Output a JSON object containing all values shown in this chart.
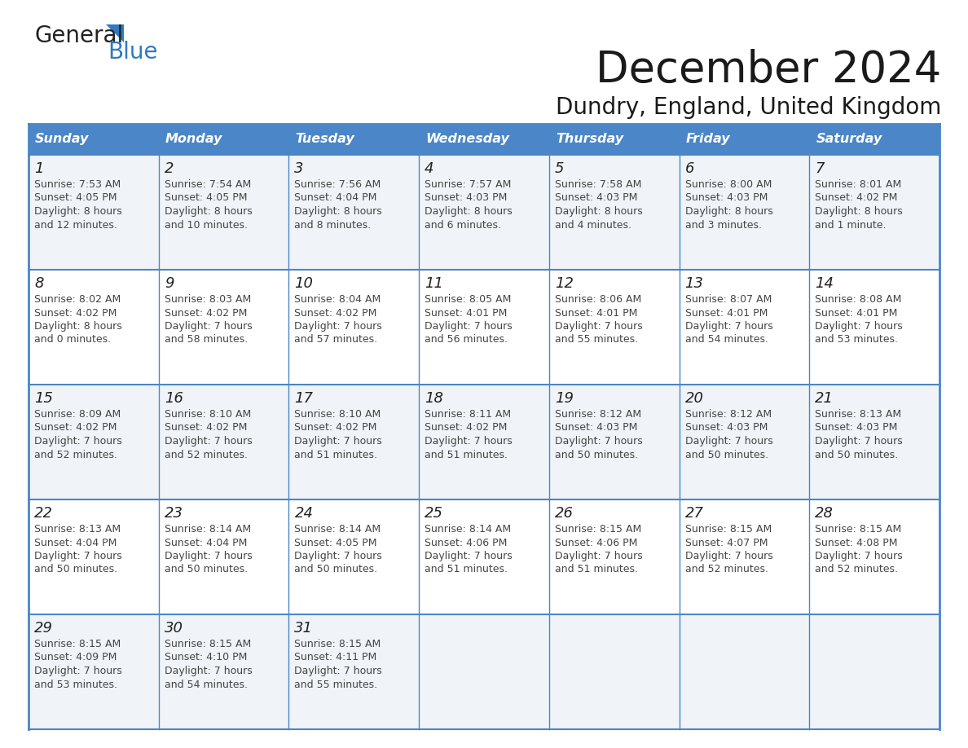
{
  "title": "December 2024",
  "subtitle": "Dundry, England, United Kingdom",
  "header_color": "#4a86c8",
  "header_text_color": "#ffffff",
  "day_names": [
    "Sunday",
    "Monday",
    "Tuesday",
    "Wednesday",
    "Thursday",
    "Friday",
    "Saturday"
  ],
  "cell_bg_even": "#f0f4f8",
  "cell_bg_odd": "#ffffff",
  "border_color": "#4a86c8",
  "day_num_color": "#222222",
  "cell_text_color": "#444444",
  "logo_general_color": "#222222",
  "logo_blue_color": "#2e7bbf",
  "title_color": "#1a1a1a",
  "subtitle_color": "#1a1a1a",
  "weeks": [
    [
      {
        "day": 1,
        "sunrise": "7:53 AM",
        "sunset": "4:05 PM",
        "daylight_line1": "Daylight: 8 hours",
        "daylight_line2": "and 12 minutes."
      },
      {
        "day": 2,
        "sunrise": "7:54 AM",
        "sunset": "4:05 PM",
        "daylight_line1": "Daylight: 8 hours",
        "daylight_line2": "and 10 minutes."
      },
      {
        "day": 3,
        "sunrise": "7:56 AM",
        "sunset": "4:04 PM",
        "daylight_line1": "Daylight: 8 hours",
        "daylight_line2": "and 8 minutes."
      },
      {
        "day": 4,
        "sunrise": "7:57 AM",
        "sunset": "4:03 PM",
        "daylight_line1": "Daylight: 8 hours",
        "daylight_line2": "and 6 minutes."
      },
      {
        "day": 5,
        "sunrise": "7:58 AM",
        "sunset": "4:03 PM",
        "daylight_line1": "Daylight: 8 hours",
        "daylight_line2": "and 4 minutes."
      },
      {
        "day": 6,
        "sunrise": "8:00 AM",
        "sunset": "4:03 PM",
        "daylight_line1": "Daylight: 8 hours",
        "daylight_line2": "and 3 minutes."
      },
      {
        "day": 7,
        "sunrise": "8:01 AM",
        "sunset": "4:02 PM",
        "daylight_line1": "Daylight: 8 hours",
        "daylight_line2": "and 1 minute."
      }
    ],
    [
      {
        "day": 8,
        "sunrise": "8:02 AM",
        "sunset": "4:02 PM",
        "daylight_line1": "Daylight: 8 hours",
        "daylight_line2": "and 0 minutes."
      },
      {
        "day": 9,
        "sunrise": "8:03 AM",
        "sunset": "4:02 PM",
        "daylight_line1": "Daylight: 7 hours",
        "daylight_line2": "and 58 minutes."
      },
      {
        "day": 10,
        "sunrise": "8:04 AM",
        "sunset": "4:02 PM",
        "daylight_line1": "Daylight: 7 hours",
        "daylight_line2": "and 57 minutes."
      },
      {
        "day": 11,
        "sunrise": "8:05 AM",
        "sunset": "4:01 PM",
        "daylight_line1": "Daylight: 7 hours",
        "daylight_line2": "and 56 minutes."
      },
      {
        "day": 12,
        "sunrise": "8:06 AM",
        "sunset": "4:01 PM",
        "daylight_line1": "Daylight: 7 hours",
        "daylight_line2": "and 55 minutes."
      },
      {
        "day": 13,
        "sunrise": "8:07 AM",
        "sunset": "4:01 PM",
        "daylight_line1": "Daylight: 7 hours",
        "daylight_line2": "and 54 minutes."
      },
      {
        "day": 14,
        "sunrise": "8:08 AM",
        "sunset": "4:01 PM",
        "daylight_line1": "Daylight: 7 hours",
        "daylight_line2": "and 53 minutes."
      }
    ],
    [
      {
        "day": 15,
        "sunrise": "8:09 AM",
        "sunset": "4:02 PM",
        "daylight_line1": "Daylight: 7 hours",
        "daylight_line2": "and 52 minutes."
      },
      {
        "day": 16,
        "sunrise": "8:10 AM",
        "sunset": "4:02 PM",
        "daylight_line1": "Daylight: 7 hours",
        "daylight_line2": "and 52 minutes."
      },
      {
        "day": 17,
        "sunrise": "8:10 AM",
        "sunset": "4:02 PM",
        "daylight_line1": "Daylight: 7 hours",
        "daylight_line2": "and 51 minutes."
      },
      {
        "day": 18,
        "sunrise": "8:11 AM",
        "sunset": "4:02 PM",
        "daylight_line1": "Daylight: 7 hours",
        "daylight_line2": "and 51 minutes."
      },
      {
        "day": 19,
        "sunrise": "8:12 AM",
        "sunset": "4:03 PM",
        "daylight_line1": "Daylight: 7 hours",
        "daylight_line2": "and 50 minutes."
      },
      {
        "day": 20,
        "sunrise": "8:12 AM",
        "sunset": "4:03 PM",
        "daylight_line1": "Daylight: 7 hours",
        "daylight_line2": "and 50 minutes."
      },
      {
        "day": 21,
        "sunrise": "8:13 AM",
        "sunset": "4:03 PM",
        "daylight_line1": "Daylight: 7 hours",
        "daylight_line2": "and 50 minutes."
      }
    ],
    [
      {
        "day": 22,
        "sunrise": "8:13 AM",
        "sunset": "4:04 PM",
        "daylight_line1": "Daylight: 7 hours",
        "daylight_line2": "and 50 minutes."
      },
      {
        "day": 23,
        "sunrise": "8:14 AM",
        "sunset": "4:04 PM",
        "daylight_line1": "Daylight: 7 hours",
        "daylight_line2": "and 50 minutes."
      },
      {
        "day": 24,
        "sunrise": "8:14 AM",
        "sunset": "4:05 PM",
        "daylight_line1": "Daylight: 7 hours",
        "daylight_line2": "and 50 minutes."
      },
      {
        "day": 25,
        "sunrise": "8:14 AM",
        "sunset": "4:06 PM",
        "daylight_line1": "Daylight: 7 hours",
        "daylight_line2": "and 51 minutes."
      },
      {
        "day": 26,
        "sunrise": "8:15 AM",
        "sunset": "4:06 PM",
        "daylight_line1": "Daylight: 7 hours",
        "daylight_line2": "and 51 minutes."
      },
      {
        "day": 27,
        "sunrise": "8:15 AM",
        "sunset": "4:07 PM",
        "daylight_line1": "Daylight: 7 hours",
        "daylight_line2": "and 52 minutes."
      },
      {
        "day": 28,
        "sunrise": "8:15 AM",
        "sunset": "4:08 PM",
        "daylight_line1": "Daylight: 7 hours",
        "daylight_line2": "and 52 minutes."
      }
    ],
    [
      {
        "day": 29,
        "sunrise": "8:15 AM",
        "sunset": "4:09 PM",
        "daylight_line1": "Daylight: 7 hours",
        "daylight_line2": "and 53 minutes."
      },
      {
        "day": 30,
        "sunrise": "8:15 AM",
        "sunset": "4:10 PM",
        "daylight_line1": "Daylight: 7 hours",
        "daylight_line2": "and 54 minutes."
      },
      {
        "day": 31,
        "sunrise": "8:15 AM",
        "sunset": "4:11 PM",
        "daylight_line1": "Daylight: 7 hours",
        "daylight_line2": "and 55 minutes."
      },
      null,
      null,
      null,
      null
    ]
  ]
}
